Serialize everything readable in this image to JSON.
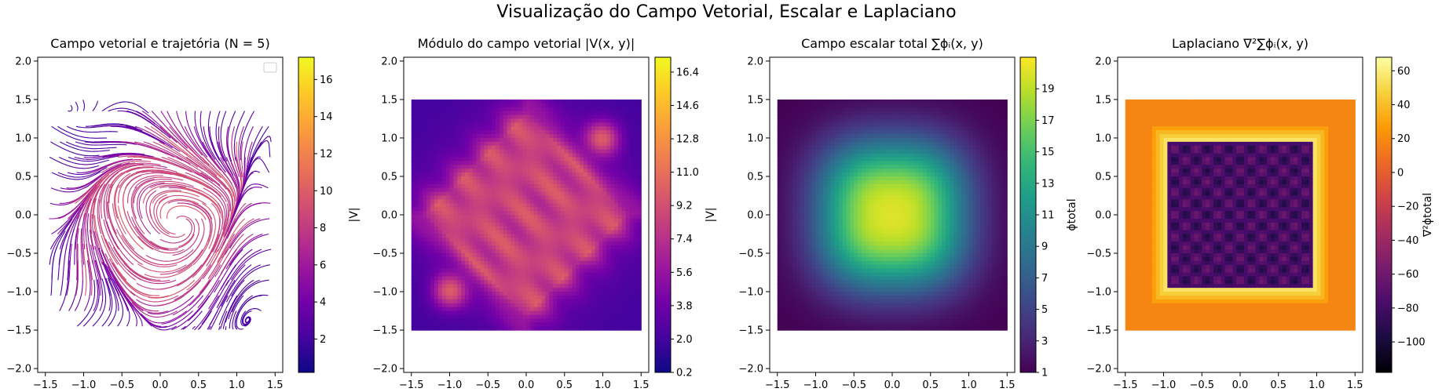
{
  "figure": {
    "suptitle": "Visualização do Campo Vetorial, Escalar e Laplaciano"
  },
  "chart_data": [
    {
      "type": "streamplot",
      "title": "Campo vetorial e trajetória (N = 5)",
      "xlim": [
        -1.6,
        1.6
      ],
      "ylim": [
        -2.05,
        2.05
      ],
      "xticks": [
        "−1.5",
        "−1.0",
        "−0.5",
        "0.0",
        "0.5",
        "1.0",
        "1.5"
      ],
      "yticks": [
        "−2.0",
        "−1.5",
        "−1.0",
        "−0.5",
        "0.0",
        "0.5",
        "1.0",
        "1.5",
        "2.0"
      ],
      "data_extent": [
        -1.5,
        1.5,
        -1.5,
        1.5
      ],
      "legend": "upper right (empty)",
      "colormap": "plasma",
      "colorbar": {
        "label": "|V|",
        "min": 0.2,
        "max": 17.2,
        "ticks": [
          "2",
          "4",
          "6",
          "8",
          "10",
          "12",
          "14",
          "16"
        ]
      }
    },
    {
      "type": "heatmap",
      "title": "Módulo do campo vetorial |V(x, y)|",
      "xlim": [
        -1.6,
        1.6
      ],
      "ylim": [
        -2.05,
        2.05
      ],
      "xticks": [
        "−1.5",
        "−1.0",
        "−0.5",
        "0.0",
        "0.5",
        "1.0",
        "1.5"
      ],
      "yticks": [
        "−2.0",
        "−1.5",
        "−1.0",
        "−0.5",
        "0.0",
        "0.5",
        "1.0",
        "1.5",
        "2.0"
      ],
      "data_extent": [
        -1.5,
        1.5,
        -1.5,
        1.5
      ],
      "colormap": "plasma",
      "colorbar": {
        "label": "|V|",
        "min": 0.2,
        "max": 17.2,
        "ticks": [
          "0.2",
          "2.0",
          "3.8",
          "5.6",
          "7.4",
          "9.2",
          "11.0",
          "12.8",
          "14.6",
          "16.4"
        ]
      }
    },
    {
      "type": "heatmap",
      "title": "Campo escalar total ∑ϕᵢ(x, y)",
      "xlim": [
        -1.6,
        1.6
      ],
      "ylim": [
        -2.05,
        2.05
      ],
      "xticks": [
        "−1.5",
        "−1.0",
        "−0.5",
        "0.0",
        "0.5",
        "1.0",
        "1.5"
      ],
      "yticks": [
        "−2.0",
        "−1.5",
        "−1.0",
        "−0.5",
        "0.0",
        "0.5",
        "1.0",
        "1.5",
        "2.0"
      ],
      "data_extent": [
        -1.5,
        1.5,
        -1.5,
        1.5
      ],
      "colormap": "viridis",
      "colorbar": {
        "label": "ϕtotal",
        "min": 1,
        "max": 21,
        "ticks": [
          "1",
          "3",
          "5",
          "7",
          "9",
          "11",
          "13",
          "15",
          "17",
          "19"
        ]
      }
    },
    {
      "type": "heatmap",
      "title": "Laplaciano ∇²∑ϕᵢ(x, y)",
      "xlim": [
        -1.6,
        1.6
      ],
      "ylim": [
        -2.05,
        2.05
      ],
      "xticks": [
        "−1.5",
        "−1.0",
        "−0.5",
        "0.0",
        "0.5",
        "1.0",
        "1.5"
      ],
      "yticks": [
        "−2.0",
        "−1.5",
        "−1.0",
        "−0.5",
        "0.0",
        "0.5",
        "1.0",
        "1.5",
        "2.0"
      ],
      "data_extent": [
        -1.5,
        1.5,
        -1.5,
        1.5
      ],
      "colormap": "inferno",
      "colorbar": {
        "label": "∇²ϕtotal",
        "min": -118,
        "max": 68,
        "ticks": [
          "−100",
          "−80",
          "−60",
          "−40",
          "−20",
          "0",
          "20",
          "40",
          "60"
        ]
      }
    }
  ]
}
